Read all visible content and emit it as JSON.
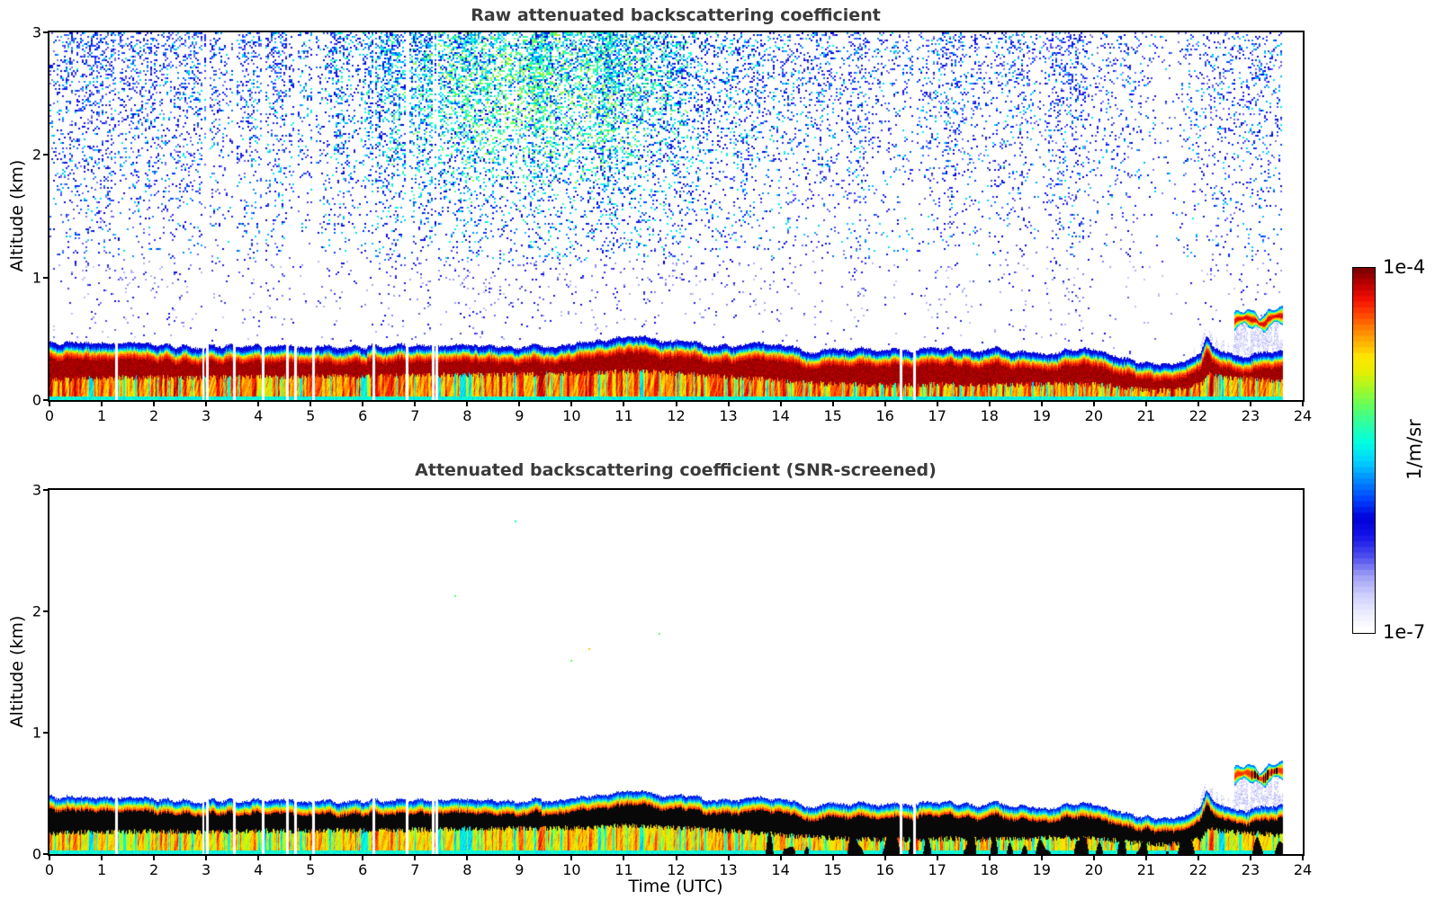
{
  "colorbar": {
    "label": "1/m/sr",
    "top_label": "1e-4",
    "bottom_label": "1e-7",
    "stops": [
      [
        0.0,
        "#ffffff"
      ],
      [
        0.05,
        "#eaeaff"
      ],
      [
        0.1,
        "#ccccfc"
      ],
      [
        0.15,
        "#9e9ef5"
      ],
      [
        0.2,
        "#5050ee"
      ],
      [
        0.26,
        "#1414e8"
      ],
      [
        0.31,
        "#0000d8"
      ],
      [
        0.36,
        "#0040ff"
      ],
      [
        0.42,
        "#0090ff"
      ],
      [
        0.47,
        "#00d4ff"
      ],
      [
        0.52,
        "#00ffe0"
      ],
      [
        0.57,
        "#2bffa8"
      ],
      [
        0.62,
        "#5fff60"
      ],
      [
        0.67,
        "#a4f827"
      ],
      [
        0.72,
        "#e8ee00"
      ],
      [
        0.76,
        "#ffe400"
      ],
      [
        0.8,
        "#ffb000"
      ],
      [
        0.84,
        "#ff7c00"
      ],
      [
        0.88,
        "#ff4000"
      ],
      [
        0.92,
        "#f01000"
      ],
      [
        0.96,
        "#c00000"
      ],
      [
        1.0,
        "#7f0000"
      ]
    ],
    "segments": 64
  },
  "chart_data": [
    {
      "type": "heatmap",
      "variant": "raw",
      "title": "Raw attenuated backscattering coefficient",
      "xlabel": "",
      "ylabel": "Altitude (km)",
      "xlim": [
        0,
        24
      ],
      "ylim": [
        0,
        3
      ],
      "x_ticks": [
        0,
        1,
        2,
        3,
        4,
        5,
        6,
        7,
        8,
        9,
        10,
        11,
        12,
        13,
        14,
        15,
        16,
        17,
        18,
        19,
        20,
        21,
        22,
        23,
        24
      ],
      "y_ticks": [
        0,
        1,
        2,
        3
      ],
      "data_end_hour": 23.62,
      "seed": 42,
      "layer_top_profile": [
        [
          0,
          0.47
        ],
        [
          0.7,
          0.46
        ],
        [
          1.2,
          0.445
        ],
        [
          1.8,
          0.46
        ],
        [
          2.3,
          0.44
        ],
        [
          3,
          0.435
        ],
        [
          3.5,
          0.445
        ],
        [
          4,
          0.44
        ],
        [
          4.6,
          0.445
        ],
        [
          5,
          0.45
        ],
        [
          5.6,
          0.435
        ],
        [
          6.2,
          0.44
        ],
        [
          7,
          0.45
        ],
        [
          7.6,
          0.44
        ],
        [
          8.2,
          0.45
        ],
        [
          9,
          0.44
        ],
        [
          9.6,
          0.445
        ],
        [
          10.2,
          0.46
        ],
        [
          10.7,
          0.495
        ],
        [
          11.1,
          0.51
        ],
        [
          11.5,
          0.5
        ],
        [
          12,
          0.475
        ],
        [
          12.6,
          0.455
        ],
        [
          13.2,
          0.44
        ],
        [
          13.7,
          0.46
        ],
        [
          14.1,
          0.425
        ],
        [
          14.6,
          0.4
        ],
        [
          15.1,
          0.405
        ],
        [
          15.5,
          0.425
        ],
        [
          16,
          0.4
        ],
        [
          16.5,
          0.405
        ],
        [
          17,
          0.43
        ],
        [
          17.4,
          0.415
        ],
        [
          17.9,
          0.4
        ],
        [
          18.1,
          0.44
        ],
        [
          18.4,
          0.395
        ],
        [
          18.9,
          0.385
        ],
        [
          19.4,
          0.4
        ],
        [
          19.8,
          0.425
        ],
        [
          20.2,
          0.39
        ],
        [
          20.6,
          0.335
        ],
        [
          21,
          0.305
        ],
        [
          21.5,
          0.3
        ],
        [
          21.9,
          0.33
        ],
        [
          22.05,
          0.38
        ],
        [
          22.15,
          0.53
        ],
        [
          22.3,
          0.42
        ],
        [
          22.5,
          0.37
        ],
        [
          22.9,
          0.36
        ],
        [
          23.3,
          0.38
        ],
        [
          23.62,
          0.42
        ]
      ],
      "dark_band_bottom_profile": [
        [
          0,
          0.17
        ],
        [
          1,
          0.18
        ],
        [
          2,
          0.185
        ],
        [
          3,
          0.18
        ],
        [
          4,
          0.19
        ],
        [
          5,
          0.19
        ],
        [
          6,
          0.195
        ],
        [
          7,
          0.2
        ],
        [
          8,
          0.205
        ],
        [
          9,
          0.21
        ],
        [
          10,
          0.215
        ],
        [
          10.8,
          0.23
        ],
        [
          11.3,
          0.235
        ],
        [
          12,
          0.215
        ],
        [
          13,
          0.19
        ],
        [
          13.8,
          0.165
        ],
        [
          14.5,
          0.14
        ],
        [
          15,
          0.13
        ],
        [
          16,
          0.12
        ],
        [
          17,
          0.125
        ],
        [
          18,
          0.12
        ],
        [
          19,
          0.13
        ],
        [
          19.8,
          0.135
        ],
        [
          20.3,
          0.115
        ],
        [
          20.8,
          0.09
        ],
        [
          21.2,
          0.075
        ],
        [
          21.7,
          0.09
        ],
        [
          22.05,
          0.13
        ],
        [
          22.2,
          0.22
        ],
        [
          22.4,
          0.19
        ],
        [
          22.8,
          0.175
        ],
        [
          23.2,
          0.17
        ],
        [
          23.62,
          0.15
        ]
      ],
      "dropout_hours": [
        1.28,
        2.94,
        3.02,
        3.53,
        4.08,
        4.55,
        4.7,
        5.05,
        6.2,
        6.84,
        7.34,
        7.41,
        16.3,
        16.56
      ],
      "cloud": {
        "t_start": 22.68,
        "t_end": 23.62,
        "center_km": 0.655,
        "half_thickness_km": 0.055
      },
      "noise_column_density": [
        [
          0,
          0.85
        ],
        [
          1,
          0.8
        ],
        [
          2,
          0.72
        ],
        [
          3,
          0.78
        ],
        [
          4,
          0.7
        ],
        [
          5,
          0.78
        ],
        [
          6,
          0.82
        ],
        [
          7,
          0.95
        ],
        [
          8,
          1.05
        ],
        [
          9,
          1.1
        ],
        [
          10,
          1.05
        ],
        [
          11,
          0.95
        ],
        [
          12,
          0.9
        ],
        [
          13,
          0.82
        ],
        [
          14,
          0.6
        ],
        [
          14.7,
          0.5
        ],
        [
          15.3,
          0.68
        ],
        [
          16,
          0.55
        ],
        [
          16.7,
          0.62
        ],
        [
          17.3,
          0.72
        ],
        [
          18,
          0.5
        ],
        [
          18.7,
          0.55
        ],
        [
          19.3,
          0.78
        ],
        [
          20,
          0.7
        ],
        [
          20.6,
          0.45
        ],
        [
          21,
          0.2
        ],
        [
          21.6,
          0.22
        ],
        [
          22.1,
          0.55
        ],
        [
          22.6,
          0.75
        ],
        [
          23.1,
          0.7
        ],
        [
          23.62,
          0.78
        ]
      ],
      "noise_plume": {
        "t_center": 9.3,
        "alt_center": 2.5,
        "t_sigma": 3.4,
        "alt_sigma": 0.95
      },
      "specks": []
    },
    {
      "type": "heatmap",
      "variant": "screened",
      "title": "Attenuated backscattering coefficient (SNR-screened)",
      "xlabel": "Time (UTC)",
      "ylabel": "Altitude (km)",
      "xlim": [
        0,
        24
      ],
      "ylim": [
        0,
        3
      ],
      "x_ticks": [
        0,
        1,
        2,
        3,
        4,
        5,
        6,
        7,
        8,
        9,
        10,
        11,
        12,
        13,
        14,
        15,
        16,
        17,
        18,
        19,
        20,
        21,
        22,
        23,
        24
      ],
      "y_ticks": [
        0,
        1,
        2,
        3
      ],
      "data_end_hour": 23.62,
      "seed": 42,
      "layer_top_profile": [
        [
          0,
          0.47
        ],
        [
          0.7,
          0.46
        ],
        [
          1.2,
          0.445
        ],
        [
          1.8,
          0.46
        ],
        [
          2.3,
          0.44
        ],
        [
          3,
          0.435
        ],
        [
          3.5,
          0.445
        ],
        [
          4,
          0.44
        ],
        [
          4.6,
          0.445
        ],
        [
          5,
          0.45
        ],
        [
          5.6,
          0.435
        ],
        [
          6.2,
          0.44
        ],
        [
          7,
          0.45
        ],
        [
          7.6,
          0.44
        ],
        [
          8.2,
          0.45
        ],
        [
          9,
          0.44
        ],
        [
          9.6,
          0.445
        ],
        [
          10.2,
          0.46
        ],
        [
          10.7,
          0.495
        ],
        [
          11.1,
          0.51
        ],
        [
          11.5,
          0.5
        ],
        [
          12,
          0.475
        ],
        [
          12.6,
          0.455
        ],
        [
          13.2,
          0.44
        ],
        [
          13.7,
          0.46
        ],
        [
          14.1,
          0.425
        ],
        [
          14.6,
          0.4
        ],
        [
          15.1,
          0.405
        ],
        [
          15.5,
          0.425
        ],
        [
          16,
          0.4
        ],
        [
          16.5,
          0.405
        ],
        [
          17,
          0.43
        ],
        [
          17.4,
          0.415
        ],
        [
          17.9,
          0.4
        ],
        [
          18.1,
          0.44
        ],
        [
          18.4,
          0.395
        ],
        [
          18.9,
          0.385
        ],
        [
          19.4,
          0.4
        ],
        [
          19.8,
          0.425
        ],
        [
          20.2,
          0.39
        ],
        [
          20.6,
          0.335
        ],
        [
          21,
          0.305
        ],
        [
          21.5,
          0.3
        ],
        [
          21.9,
          0.33
        ],
        [
          22.05,
          0.38
        ],
        [
          22.15,
          0.53
        ],
        [
          22.3,
          0.42
        ],
        [
          22.5,
          0.37
        ],
        [
          22.9,
          0.36
        ],
        [
          23.3,
          0.38
        ],
        [
          23.62,
          0.42
        ]
      ],
      "dark_band_bottom_profile": [
        [
          0,
          0.17
        ],
        [
          1,
          0.18
        ],
        [
          2,
          0.185
        ],
        [
          3,
          0.18
        ],
        [
          4,
          0.19
        ],
        [
          5,
          0.19
        ],
        [
          6,
          0.195
        ],
        [
          7,
          0.2
        ],
        [
          8,
          0.205
        ],
        [
          9,
          0.21
        ],
        [
          10,
          0.215
        ],
        [
          10.8,
          0.23
        ],
        [
          11.3,
          0.235
        ],
        [
          12,
          0.215
        ],
        [
          13,
          0.19
        ],
        [
          13.8,
          0.165
        ],
        [
          14.5,
          0.14
        ],
        [
          15,
          0.13
        ],
        [
          16,
          0.12
        ],
        [
          17,
          0.125
        ],
        [
          18,
          0.12
        ],
        [
          19,
          0.13
        ],
        [
          19.8,
          0.135
        ],
        [
          20.3,
          0.115
        ],
        [
          20.8,
          0.09
        ],
        [
          21.2,
          0.075
        ],
        [
          21.7,
          0.09
        ],
        [
          22.05,
          0.13
        ],
        [
          22.2,
          0.22
        ],
        [
          22.4,
          0.19
        ],
        [
          22.8,
          0.175
        ],
        [
          23.2,
          0.17
        ],
        [
          23.62,
          0.15
        ]
      ],
      "dropout_hours": [
        1.28,
        2.94,
        3.02,
        3.53,
        4.08,
        4.55,
        4.7,
        5.05,
        6.2,
        6.84,
        7.34,
        7.41,
        16.3,
        16.56
      ],
      "cloud": {
        "t_start": 22.68,
        "t_end": 23.62,
        "center_km": 0.655,
        "half_thickness_km": 0.055
      },
      "noise_column_density": [],
      "noise_plume": null,
      "specks": [
        {
          "t": 7.76,
          "alt": 2.13,
          "v": 0.6
        },
        {
          "t": 9.97,
          "alt": 1.6,
          "v": 0.62
        },
        {
          "t": 11.66,
          "alt": 1.82,
          "v": 0.6
        },
        {
          "t": 10.32,
          "alt": 1.7,
          "v": 0.78
        },
        {
          "t": 8.9,
          "alt": 2.75,
          "v": 0.55
        }
      ]
    }
  ]
}
